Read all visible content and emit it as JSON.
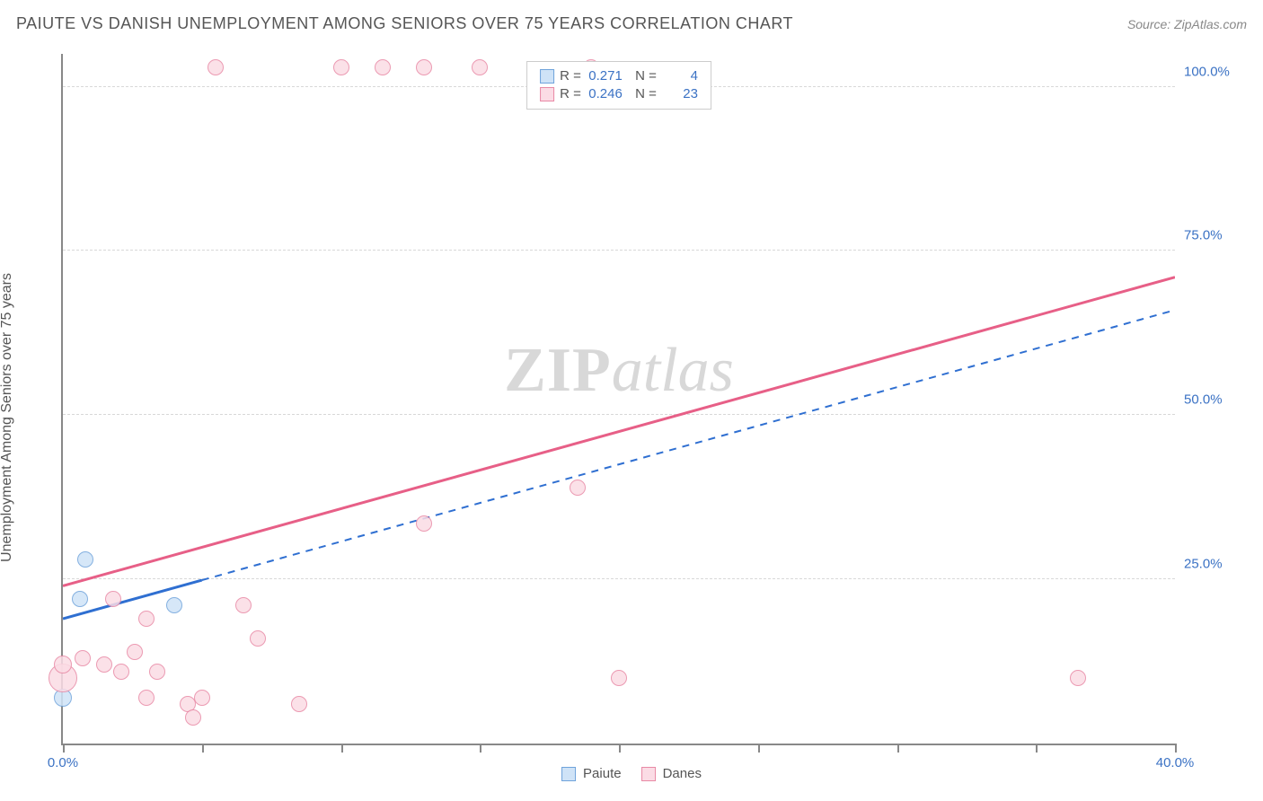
{
  "header": {
    "title": "PAIUTE VS DANISH UNEMPLOYMENT AMONG SENIORS OVER 75 YEARS CORRELATION CHART",
    "source": "Source: ZipAtlas.com"
  },
  "ylabel": "Unemployment Among Seniors over 75 years",
  "watermark": {
    "left": "ZIP",
    "right": "atlas"
  },
  "axes": {
    "xmin": 0,
    "xmax": 40,
    "ymin": 0,
    "ymax": 105,
    "yticks": [
      25,
      50,
      75,
      100
    ],
    "ytick_labels": [
      "25.0%",
      "50.0%",
      "75.0%",
      "100.0%"
    ],
    "xticks": [
      0,
      5,
      10,
      15,
      20,
      25,
      30,
      35,
      40
    ],
    "xtick_labels_shown": {
      "0": "0.0%",
      "40": "40.0%"
    },
    "grid_color": "#d8d8d8",
    "tick_label_color": "#3b72c4",
    "axis_color": "#888888"
  },
  "series": [
    {
      "id": "paiute",
      "label": "Paiute",
      "fill": "#cfe3f7",
      "stroke": "#6fa3db",
      "line_color": "#2f6fd1",
      "line_dash_after_x": 5,
      "R": "0.271",
      "N": "4",
      "trend": {
        "x1": 0,
        "y1": 19,
        "x2": 40,
        "y2": 66
      },
      "points": [
        {
          "x": 0.0,
          "y": 7.0,
          "r": 10
        },
        {
          "x": 0.6,
          "y": 22.0,
          "r": 9
        },
        {
          "x": 0.8,
          "y": 28.0,
          "r": 9
        },
        {
          "x": 4.0,
          "y": 21.0,
          "r": 9
        }
      ]
    },
    {
      "id": "danes",
      "label": "Danes",
      "fill": "#fbdce5",
      "stroke": "#e889a5",
      "line_color": "#e75f87",
      "R": "0.246",
      "N": "23",
      "trend": {
        "x1": 0,
        "y1": 24,
        "x2": 40,
        "y2": 71
      },
      "points": [
        {
          "x": 0.0,
          "y": 10.0,
          "r": 16
        },
        {
          "x": 0.0,
          "y": 12.0,
          "r": 10
        },
        {
          "x": 0.7,
          "y": 13.0,
          "r": 9
        },
        {
          "x": 1.5,
          "y": 12.0,
          "r": 9
        },
        {
          "x": 1.8,
          "y": 22.0,
          "r": 9
        },
        {
          "x": 2.1,
          "y": 11.0,
          "r": 9
        },
        {
          "x": 2.6,
          "y": 14.0,
          "r": 9
        },
        {
          "x": 3.0,
          "y": 19.0,
          "r": 9
        },
        {
          "x": 3.0,
          "y": 7.0,
          "r": 9
        },
        {
          "x": 3.4,
          "y": 11.0,
          "r": 9
        },
        {
          "x": 4.5,
          "y": 6.0,
          "r": 9
        },
        {
          "x": 4.7,
          "y": 4.0,
          "r": 9
        },
        {
          "x": 5.0,
          "y": 7.0,
          "r": 9
        },
        {
          "x": 6.5,
          "y": 21.0,
          "r": 9
        },
        {
          "x": 7.0,
          "y": 16.0,
          "r": 9
        },
        {
          "x": 8.5,
          "y": 6.0,
          "r": 9
        },
        {
          "x": 5.5,
          "y": 103.0,
          "r": 9
        },
        {
          "x": 10.0,
          "y": 103.0,
          "r": 9
        },
        {
          "x": 11.5,
          "y": 103.0,
          "r": 9
        },
        {
          "x": 13.0,
          "y": 103.0,
          "r": 9
        },
        {
          "x": 15.0,
          "y": 103.0,
          "r": 9
        },
        {
          "x": 19.0,
          "y": 103.0,
          "r": 9
        },
        {
          "x": 13.0,
          "y": 33.5,
          "r": 9
        },
        {
          "x": 18.5,
          "y": 39.0,
          "r": 9
        },
        {
          "x": 20.0,
          "y": 10.0,
          "r": 9
        },
        {
          "x": 36.5,
          "y": 10.0,
          "r": 9
        }
      ]
    }
  ],
  "legend_bottom": [
    {
      "series": "paiute",
      "label": "Paiute"
    },
    {
      "series": "danes",
      "label": "Danes"
    }
  ]
}
